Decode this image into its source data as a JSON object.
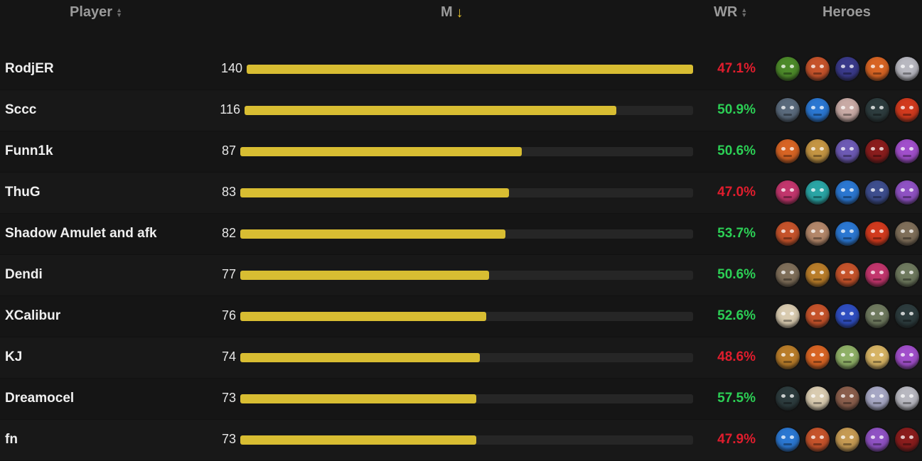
{
  "header": {
    "player": "Player",
    "matches": "M",
    "winrate": "WR",
    "heroes": "Heroes"
  },
  "colors": {
    "bar": "#d8bd32",
    "winrate_positive": "#2ccf55",
    "winrate_negative": "#e01d2d"
  },
  "max_matches": 140,
  "rows": [
    {
      "player": "RodjER",
      "matches": "140",
      "matches_value": 140,
      "winrate": "47.1%",
      "winrate_positive": false,
      "heroes": [
        {
          "icon": "green-hero-icon",
          "color": "#4d8a2a"
        },
        {
          "icon": "red-hair-hero-icon",
          "color": "#c5532b"
        },
        {
          "icon": "purple-hood-hero-icon",
          "color": "#3a3a8a"
        },
        {
          "icon": "flame-hero-icon",
          "color": "#d76424"
        },
        {
          "icon": "white-beard-hero-icon",
          "color": "#b8b8c0"
        }
      ]
    },
    {
      "player": "Sccc",
      "matches": "116",
      "matches_value": 116,
      "winrate": "50.9%",
      "winrate_positive": true,
      "heroes": [
        {
          "icon": "horned-hero-icon",
          "color": "#5a6a7c"
        },
        {
          "icon": "blue-dragon-hero-icon",
          "color": "#2b77d1"
        },
        {
          "icon": "white-hair-hero-icon",
          "color": "#c8aaa5"
        },
        {
          "icon": "dark-horned-hero-icon",
          "color": "#2d3c3e"
        },
        {
          "icon": "red-gold-hero-icon",
          "color": "#d13a1e"
        }
      ]
    },
    {
      "player": "Funn1k",
      "matches": "87",
      "matches_value": 87,
      "winrate": "50.6%",
      "winrate_positive": true,
      "heroes": [
        {
          "icon": "flame-hero-icon",
          "color": "#d76424"
        },
        {
          "icon": "golden-horn-hero-icon",
          "color": "#c49543"
        },
        {
          "icon": "purple-demon-hero-icon",
          "color": "#6d5ab4"
        },
        {
          "icon": "red-demon-hero-icon",
          "color": "#8a1d1d"
        },
        {
          "icon": "violet-horned-hero-icon",
          "color": "#a14fcb"
        }
      ]
    },
    {
      "player": "ThuG",
      "matches": "83",
      "matches_value": 83,
      "winrate": "47.0%",
      "winrate_positive": false,
      "heroes": [
        {
          "icon": "masked-hero-icon",
          "color": "#c2366d"
        },
        {
          "icon": "teal-spirit-hero-icon",
          "color": "#2aa5a5"
        },
        {
          "icon": "blue-dragon-hero-icon",
          "color": "#2b77d1"
        },
        {
          "icon": "dark-hood-hero-icon",
          "color": "#3e4e8e"
        },
        {
          "icon": "violet-mage-hero-icon",
          "color": "#8f52c3"
        }
      ]
    },
    {
      "player": "Shadow Amulet and afk",
      "matches": "82",
      "matches_value": 82,
      "winrate": "53.7%",
      "winrate_positive": true,
      "heroes": [
        {
          "icon": "red-hair-hero-icon",
          "color": "#c5532b"
        },
        {
          "icon": "bald-hero-icon",
          "color": "#b3876a"
        },
        {
          "icon": "blue-dragon-hero-icon",
          "color": "#2b77d1"
        },
        {
          "icon": "red-gold-hero-icon",
          "color": "#d13a1e"
        },
        {
          "icon": "brown-brute-hero-icon",
          "color": "#7f6f5a"
        }
      ]
    },
    {
      "player": "Dendi",
      "matches": "77",
      "matches_value": 77,
      "winrate": "50.6%",
      "winrate_positive": true,
      "heroes": [
        {
          "icon": "brown-brute-hero-icon",
          "color": "#7f6f5a"
        },
        {
          "icon": "golden-beetle-hero-icon",
          "color": "#b97d2a"
        },
        {
          "icon": "red-hair-hero-icon",
          "color": "#c5532b"
        },
        {
          "icon": "masked-hero-icon",
          "color": "#c2366d"
        },
        {
          "icon": "green-rock-hero-icon",
          "color": "#6f7a5f"
        }
      ]
    },
    {
      "player": "XCalibur",
      "matches": "76",
      "matches_value": 76,
      "winrate": "52.6%",
      "winrate_positive": true,
      "heroes": [
        {
          "icon": "white-robe-hero-icon",
          "color": "#d9cbb0"
        },
        {
          "icon": "red-hair-hero-icon",
          "color": "#c5532b"
        },
        {
          "icon": "blue-orb-hero-icon",
          "color": "#2f4ec0"
        },
        {
          "icon": "green-rock-hero-icon",
          "color": "#6f7a5f"
        },
        {
          "icon": "dark-horned-hero-icon",
          "color": "#2d3c3e"
        }
      ]
    },
    {
      "player": "KJ",
      "matches": "74",
      "matches_value": 74,
      "winrate": "48.6%",
      "winrate_positive": false,
      "heroes": [
        {
          "icon": "golden-beetle-hero-icon",
          "color": "#b97d2a"
        },
        {
          "icon": "flame-hero-icon",
          "color": "#d76424"
        },
        {
          "icon": "green-elf-hero-icon",
          "color": "#8fb067"
        },
        {
          "icon": "golden-hair-hero-icon",
          "color": "#d6b364"
        },
        {
          "icon": "violet-horned-hero-icon",
          "color": "#a14fcb"
        }
      ]
    },
    {
      "player": "Dreamocel",
      "matches": "73",
      "matches_value": 73,
      "winrate": "57.5%",
      "winrate_positive": true,
      "heroes": [
        {
          "icon": "dark-horned-hero-icon",
          "color": "#2d3c3e"
        },
        {
          "icon": "white-robe-hero-icon",
          "color": "#d9cbb0"
        },
        {
          "icon": "brown-brute-hero-icon",
          "color": "#8a5e4c"
        },
        {
          "icon": "silver-helm-hero-icon",
          "color": "#a6a7c4"
        },
        {
          "icon": "white-beard-hero-icon",
          "color": "#b8b8c0"
        }
      ]
    },
    {
      "player": "fn",
      "matches": "73",
      "matches_value": 73,
      "winrate": "47.9%",
      "winrate_positive": false,
      "heroes": [
        {
          "icon": "blue-dragon-hero-icon",
          "color": "#2b77d1"
        },
        {
          "icon": "red-hair-hero-icon",
          "color": "#c5532b"
        },
        {
          "icon": "golden-hair-hero-icon",
          "color": "#c59a53"
        },
        {
          "icon": "violet-mage-hero-icon",
          "color": "#8f52c3"
        },
        {
          "icon": "red-demon-hero-icon",
          "color": "#8a1d1d"
        }
      ]
    }
  ]
}
